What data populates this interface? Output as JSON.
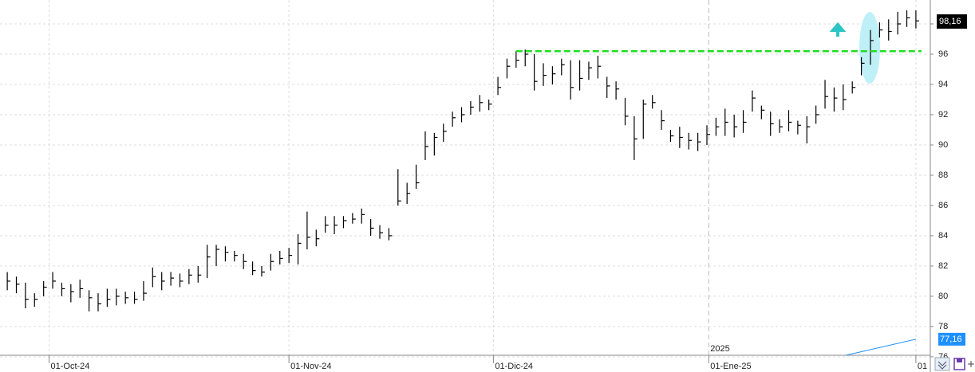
{
  "chart_data": {
    "type": "ohlc",
    "grid": true,
    "bar_color": "#000000",
    "xlim": [
      -0.8,
      101.5
    ],
    "ylim": [
      76.1,
      99.58
    ],
    "yticks": [
      76,
      78,
      80,
      82,
      84,
      86,
      88,
      90,
      92,
      94,
      96,
      98
    ],
    "xticks": [
      {
        "value": 4.6,
        "label": "01-Oct-24"
      },
      {
        "value": 31,
        "label": "01-Nov-24"
      },
      {
        "value": 53.5,
        "label": "01-Dic-24"
      },
      {
        "value": 77.2,
        "label": "01-Ene-25"
      },
      {
        "value": 100,
        "label": "01"
      }
    ],
    "year_label": "2025",
    "high": [
      81.6,
      81.3,
      80.9,
      80.2,
      81.0,
      81.6,
      80.9,
      80.8,
      81.1,
      80.4,
      80.2,
      80.5,
      80.5,
      80.3,
      80.3,
      81.0,
      81.9,
      81.6,
      81.6,
      81.5,
      81.8,
      82.0,
      83.4,
      83.4,
      83.3,
      83.0,
      82.8,
      82.3,
      82.0,
      82.8,
      83.0,
      83.2,
      84.1,
      85.6,
      84.4,
      85.3,
      85.3,
      85.3,
      85.5,
      85.8,
      85.1,
      84.7,
      84.5,
      88.4,
      87.5,
      88.7,
      90.9,
      90.8,
      91.4,
      92.2,
      92.5,
      92.9,
      93.3,
      93.0,
      94.5,
      95.7,
      96.2,
      96.3,
      96.0,
      95.4,
      95.2,
      95.7,
      95.6,
      95.6,
      95.5,
      95.9,
      94.5,
      94.2,
      93.1,
      91.9,
      93.0,
      93.3,
      92.3,
      91.0,
      91.2,
      90.8,
      90.8,
      91.3,
      91.8,
      92.4,
      92.0,
      92.3,
      93.6,
      92.6,
      92.2,
      91.7,
      92.3,
      91.6,
      91.9,
      92.6,
      94.3,
      93.8,
      94.0,
      94.2,
      95.8,
      97.6,
      98.1,
      98.3,
      98.8,
      98.9,
      98.9
    ],
    "low": [
      80.4,
      80.2,
      79.2,
      79.3,
      80.0,
      80.5,
      80.0,
      79.6,
      79.9,
      79.0,
      79.0,
      79.3,
      79.4,
      79.5,
      79.5,
      79.7,
      80.6,
      80.4,
      80.7,
      80.6,
      80.8,
      80.9,
      81.2,
      82.0,
      82.3,
      82.3,
      81.8,
      81.4,
      81.3,
      81.7,
      82.1,
      82.2,
      82.1,
      83.1,
      83.3,
      84.2,
      84.1,
      84.5,
      84.8,
      84.8,
      84.0,
      83.8,
      83.7,
      86.0,
      86.1,
      87.1,
      89.0,
      89.3,
      90.2,
      91.2,
      91.5,
      92.0,
      92.2,
      92.3,
      93.3,
      94.4,
      95.1,
      95.2,
      93.6,
      93.9,
      94.0,
      94.6,
      93.0,
      93.6,
      94.3,
      94.4,
      93.1,
      93.0,
      91.3,
      89.0,
      90.4,
      92.4,
      91.0,
      90.2,
      89.8,
      89.7,
      89.6,
      90.0,
      90.6,
      90.6,
      90.5,
      90.8,
      92.2,
      91.7,
      90.6,
      90.8,
      90.9,
      90.7,
      90.1,
      91.4,
      92.4,
      92.2,
      92.3,
      93.4,
      94.6,
      95.3,
      97.1,
      96.9,
      97.3,
      97.8,
      97.7
    ],
    "close": [
      81.0,
      80.8,
      79.8,
      79.8,
      80.6,
      81.0,
      80.5,
      80.3,
      80.5,
      79.9,
      79.5,
      79.8,
      80.0,
      79.9,
      79.8,
      80.2,
      81.3,
      81.0,
      81.2,
      81.0,
      81.4,
      81.4,
      82.6,
      83.1,
      82.9,
      82.7,
      82.3,
      81.7,
      81.6,
      82.3,
      82.5,
      82.7,
      83.5,
      83.9,
      83.8,
      84.7,
      84.7,
      85.0,
      85.1,
      85.4,
      84.5,
      84.2,
      84.0,
      86.3,
      86.8,
      87.5,
      89.9,
      90.5,
      90.9,
      91.8,
      92.0,
      92.5,
      92.8,
      92.7,
      93.8,
      95.2,
      95.6,
      96.0,
      94.2,
      94.6,
      94.7,
      95.3,
      93.8,
      94.4,
      95.1,
      95.2,
      93.9,
      93.7,
      91.9,
      90.4,
      92.7,
      92.8,
      91.6,
      90.6,
      90.5,
      90.3,
      90.2,
      90.7,
      91.2,
      91.5,
      91.2,
      91.5,
      93.1,
      92.3,
      91.4,
      91.2,
      91.5,
      91.3,
      91.2,
      92.0,
      93.2,
      93.1,
      93.0,
      93.8,
      95.4,
      96.9,
      97.6,
      97.5,
      98.0,
      98.4,
      98.2
    ],
    "resistance": {
      "value": 96.2,
      "x_start": 56,
      "color": "#22dd22"
    },
    "last_price": {
      "value": 98.16,
      "label": "98,16",
      "color": "#000000"
    },
    "indicator": {
      "value": 77.16,
      "label": "77,16",
      "color": "#1e90ff"
    }
  }
}
